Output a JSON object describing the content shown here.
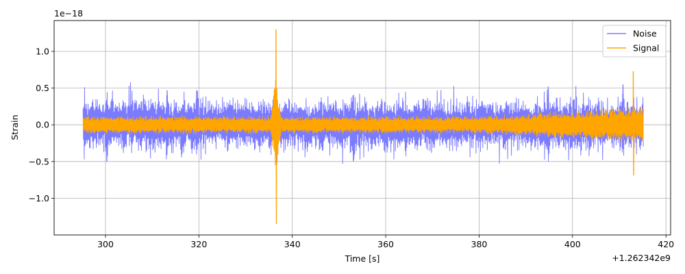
{
  "chart_data": {
    "type": "line",
    "title": "",
    "xlabel": "Time [s]",
    "ylabel": "Strain",
    "x_offset_label": "+1.262342e9",
    "y_scale_label": "1e−18",
    "xlim": [
      289,
      421
    ],
    "ylim": [
      -1.5,
      1.42
    ],
    "xticks": [
      300,
      320,
      340,
      360,
      380,
      400,
      420
    ],
    "xtick_labels": [
      "300",
      "320",
      "340",
      "360",
      "380",
      "400",
      "420"
    ],
    "yticks": [
      -1.0,
      -0.5,
      0.0,
      0.5,
      1.0
    ],
    "ytick_labels": [
      "−1.0",
      "−0.5",
      "0.0",
      "0.5",
      "1.0"
    ],
    "grid": true,
    "legend_position": "top-right",
    "series": [
      {
        "name": "Noise",
        "color": "#7b7bff",
        "x_range": [
          295.2,
          415.2
        ],
        "typical_amplitude": 0.25,
        "peaks": [
          {
            "x": 300.2,
            "y_min": -0.5
          },
          {
            "x": 313.2,
            "y_max": 0.47
          },
          {
            "x": 319.5,
            "y_max": 0.47
          },
          {
            "x": 353.0,
            "y_min": -0.5
          },
          {
            "x": 394.8,
            "y_max": 0.52
          },
          {
            "x": 410.8,
            "y_max": 0.55
          }
        ]
      },
      {
        "name": "Signal",
        "color": "#ffa500",
        "x_range": [
          295.2,
          415.2
        ],
        "typical_amplitude": 0.1,
        "peaks": [
          {
            "x": 336.5,
            "y_max": 1.3,
            "y_min": -1.35
          },
          {
            "x": 413.0,
            "y_max": 0.73,
            "y_min": -0.69
          }
        ]
      }
    ]
  }
}
